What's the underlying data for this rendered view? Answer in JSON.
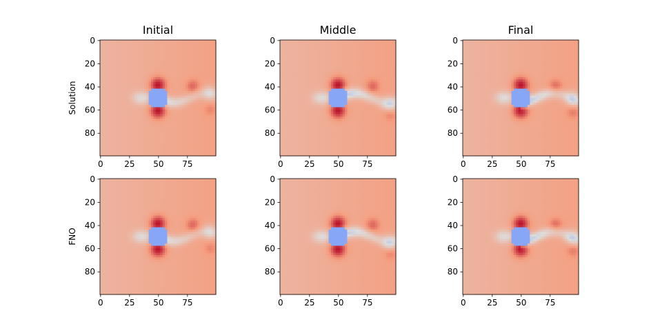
{
  "chart_data": {
    "type": "heatmap",
    "colormap": "coolwarm",
    "columns": [
      "Initial",
      "Middle",
      "Final"
    ],
    "rows": [
      "Solution",
      "FNO"
    ],
    "xticks": [
      "0",
      "25",
      "50",
      "75"
    ],
    "yticks": [
      "0",
      "20",
      "40",
      "60",
      "80"
    ],
    "xlim": [
      0,
      99
    ],
    "ylim": [
      99,
      0
    ],
    "grid": false,
    "panels": [
      {
        "row": "Solution",
        "column": "Initial",
        "cylinder_center": [
          50,
          50
        ],
        "cylinder_radius": 9,
        "wake_strength": 0.6,
        "wake_phase": 0.0
      },
      {
        "row": "Solution",
        "column": "Middle",
        "cylinder_center": [
          50,
          50
        ],
        "cylinder_radius": 9,
        "wake_strength": 0.8,
        "wake_phase": 1.0
      },
      {
        "row": "Solution",
        "column": "Final",
        "cylinder_center": [
          50,
          50
        ],
        "cylinder_radius": 9,
        "wake_strength": 0.8,
        "wake_phase": 0.5
      },
      {
        "row": "FNO",
        "column": "Initial",
        "cylinder_center": [
          50,
          50
        ],
        "cylinder_radius": 9,
        "wake_strength": 0.6,
        "wake_phase": 0.0
      },
      {
        "row": "FNO",
        "column": "Middle",
        "cylinder_center": [
          50,
          50
        ],
        "cylinder_radius": 9,
        "wake_strength": 0.8,
        "wake_phase": 1.0
      },
      {
        "row": "FNO",
        "column": "Final",
        "cylinder_center": [
          50,
          50
        ],
        "cylinder_radius": 9,
        "wake_strength": 0.8,
        "wake_phase": 0.5
      }
    ]
  }
}
